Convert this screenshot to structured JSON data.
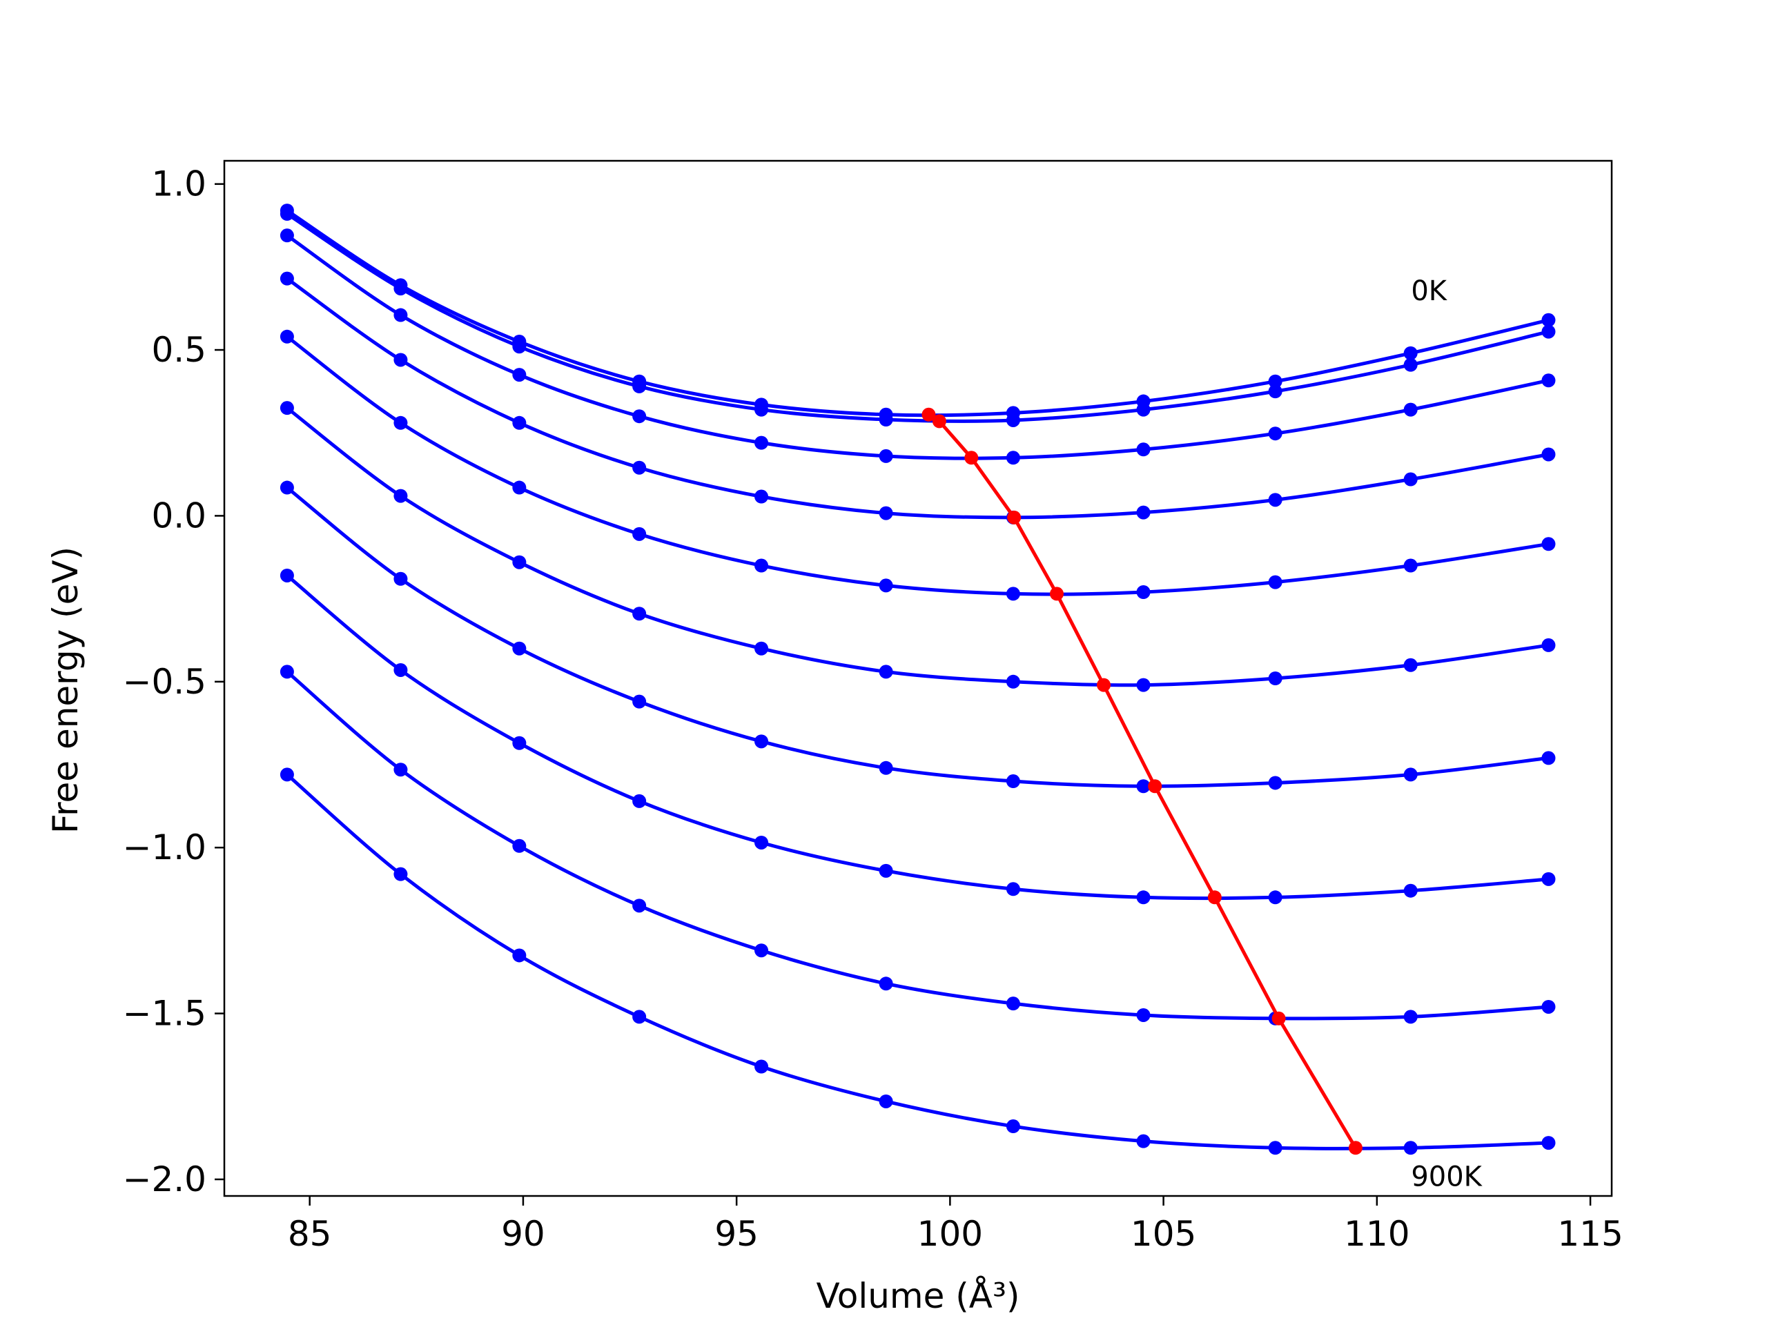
{
  "chart_data": {
    "type": "line",
    "xlabel": "Volume (Å³)",
    "ylabel": "Free energy (eV)",
    "xlim": [
      83,
      115.5
    ],
    "ylim": [
      -2.05,
      1.07
    ],
    "xticks": [
      85,
      90,
      95,
      100,
      105,
      110,
      115
    ],
    "yticks": [
      1.0,
      0.5,
      0.0,
      -0.5,
      -1.0,
      -1.5,
      -2.0
    ],
    "xtick_labels": [
      "85",
      "90",
      "95",
      "100",
      "105",
      "110",
      "115"
    ],
    "ytick_labels": [
      "1.0",
      "0.5",
      "0.0",
      "−0.5",
      "−1.0",
      "−1.5",
      "−2.0"
    ],
    "grid": false,
    "legend": false,
    "annotations": [
      {
        "text": "0K",
        "x": 110.8,
        "y": 0.65
      },
      {
        "text": "900K",
        "x": 110.8,
        "y": -2.02
      }
    ],
    "x": [
      84.47,
      87.13,
      89.91,
      92.72,
      95.58,
      98.5,
      101.48,
      104.53,
      107.62,
      110.79,
      114.02
    ],
    "series": [
      {
        "values": [
          0.92,
          0.695,
          0.525,
          0.405,
          0.335,
          0.305,
          0.31,
          0.345,
          0.405,
          0.49,
          0.59
        ],
        "color": "#0000ff"
      },
      {
        "values": [
          0.91,
          0.685,
          0.51,
          0.39,
          0.32,
          0.29,
          0.288,
          0.32,
          0.375,
          0.455,
          0.555
        ],
        "color": "#0000ff"
      },
      {
        "values": [
          0.845,
          0.605,
          0.425,
          0.3,
          0.22,
          0.18,
          0.175,
          0.2,
          0.248,
          0.32,
          0.408
        ],
        "color": "#0000ff"
      },
      {
        "values": [
          0.715,
          0.47,
          0.28,
          0.145,
          0.058,
          0.008,
          -0.005,
          0.01,
          0.048,
          0.11,
          0.185
        ],
        "color": "#0000ff"
      },
      {
        "values": [
          0.54,
          0.28,
          0.085,
          -0.055,
          -0.15,
          -0.21,
          -0.235,
          -0.23,
          -0.2,
          -0.15,
          -0.085
        ],
        "color": "#0000ff"
      },
      {
        "values": [
          0.325,
          0.06,
          -0.14,
          -0.295,
          -0.4,
          -0.47,
          -0.5,
          -0.51,
          -0.49,
          -0.45,
          -0.39
        ],
        "color": "#0000ff"
      },
      {
        "values": [
          0.085,
          -0.19,
          -0.4,
          -0.56,
          -0.68,
          -0.76,
          -0.8,
          -0.815,
          -0.805,
          -0.78,
          -0.73
        ],
        "color": "#0000ff"
      },
      {
        "values": [
          -0.18,
          -0.465,
          -0.685,
          -0.86,
          -0.985,
          -1.07,
          -1.125,
          -1.15,
          -1.15,
          -1.13,
          -1.095
        ],
        "color": "#0000ff"
      },
      {
        "values": [
          -0.47,
          -0.765,
          -0.995,
          -1.175,
          -1.31,
          -1.41,
          -1.47,
          -1.505,
          -1.515,
          -1.51,
          -1.48
        ],
        "color": "#0000ff"
      },
      {
        "values": [
          -0.78,
          -1.08,
          -1.325,
          -1.51,
          -1.66,
          -1.765,
          -1.84,
          -1.885,
          -1.905,
          -1.905,
          -1.89
        ],
        "color": "#0000ff"
      }
    ],
    "equilibrium_line": {
      "color": "#ff0000",
      "points": [
        [
          99.5,
          0.305
        ],
        [
          99.75,
          0.285
        ],
        [
          100.5,
          0.175
        ],
        [
          101.5,
          -0.005
        ],
        [
          102.5,
          -0.235
        ],
        [
          103.6,
          -0.51
        ],
        [
          104.8,
          -0.815
        ],
        [
          106.2,
          -1.15
        ],
        [
          107.7,
          -1.515
        ],
        [
          109.5,
          -1.905
        ]
      ]
    }
  }
}
